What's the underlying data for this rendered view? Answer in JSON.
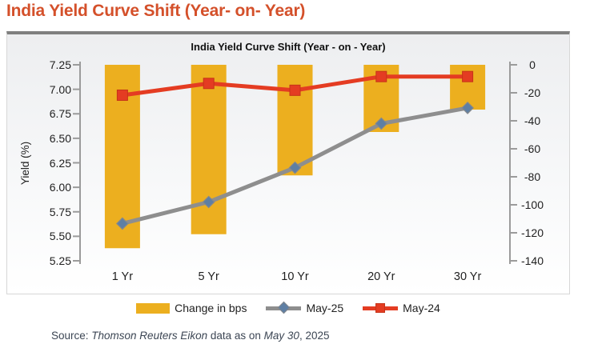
{
  "page": {
    "title": "India Yield Curve Shift (Year- on- Year)",
    "source": {
      "prefix": "Source: ",
      "provider": "Thomson Reuters Eikon",
      "middle": " data as on ",
      "date_italic": "May 30",
      "suffix": ", 2025"
    }
  },
  "chart_data": {
    "type": "combo-bar-line",
    "title": "India Yield Curve Shift (Year - on - Year)",
    "categories": [
      "1 Yr",
      "5 Yr",
      "10 Yr",
      "20 Yr",
      "30 Yr"
    ],
    "bar_series": {
      "name": "Change in bps",
      "axis": "right",
      "values": [
        -131,
        -121,
        -79,
        -48,
        -32
      ],
      "color": "#ECAF1F"
    },
    "line_series": [
      {
        "name": "May-25",
        "axis": "left",
        "values": [
          5.63,
          5.85,
          6.2,
          6.65,
          6.81
        ],
        "color": "#8E8E8E",
        "marker": "diamond",
        "marker_color": "#5E7FA4"
      },
      {
        "name": "May-24",
        "axis": "left",
        "values": [
          6.94,
          7.06,
          6.99,
          7.13,
          7.13
        ],
        "color": "#E43C22",
        "marker": "square",
        "marker_color": "#E43C22"
      }
    ],
    "left_axis": {
      "label": "Yield (%)",
      "min": 5.25,
      "max": 7.25,
      "ticks": [
        "7.25",
        "7.00",
        "6.75",
        "6.50",
        "6.25",
        "6.00",
        "5.75",
        "5.50",
        "5.25"
      ]
    },
    "right_axis": {
      "min": -140,
      "max": 0,
      "ticks": [
        "0",
        "-20",
        "-40",
        "-60",
        "-80",
        "-100",
        "-120",
        "-140"
      ]
    },
    "legend_position": "bottom",
    "grid": "off",
    "axis_color": "#9B9B9B"
  }
}
